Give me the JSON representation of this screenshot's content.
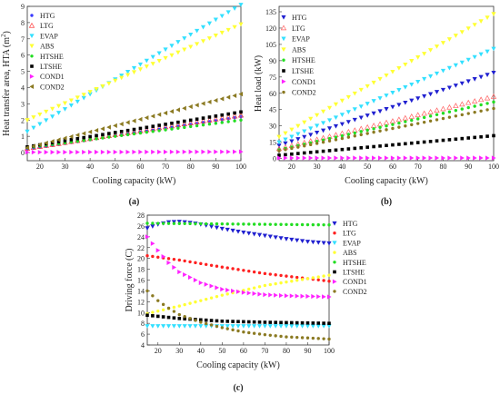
{
  "chart_data": [
    {
      "id": "a",
      "type": "scatter",
      "panel_label": "(a)",
      "xlabel": "Cooling capacity (kW)",
      "ylabel": "Heat transfer area, HTA (m",
      "ylabel_sup": "2",
      "ylabel_tail": ")",
      "xlim": [
        15,
        100
      ],
      "ylim": [
        -0.5,
        9
      ],
      "xticks": [
        20,
        30,
        40,
        50,
        60,
        70,
        80,
        90,
        100
      ],
      "yticks": [
        0,
        1,
        2,
        3,
        4,
        5,
        6,
        7,
        8,
        9
      ],
      "legend_position": "top-left",
      "series": [
        {
          "name": "HTG",
          "color": "#3a3aff",
          "marker": "dot",
          "y_start": 0.2,
          "y_end": 2.2
        },
        {
          "name": "LTG",
          "color": "#ff4040",
          "marker": "triangle-open",
          "y_start": 0.25,
          "y_end": 2.3
        },
        {
          "name": "EVAP",
          "color": "#33e0ff",
          "marker": "triangle-down",
          "y_start": 1.3,
          "y_end": 9.1
        },
        {
          "name": "ABS",
          "color": "#ffff33",
          "marker": "triangle-down",
          "y_start": 2.0,
          "y_end": 7.9
        },
        {
          "name": "HTSHE",
          "color": "#22dd22",
          "marker": "dot",
          "y_start": 0.3,
          "y_end": 2.0
        },
        {
          "name": "LTSHE",
          "color": "#000000",
          "marker": "square",
          "y_start": 0.35,
          "y_end": 2.5
        },
        {
          "name": "COND1",
          "color": "#ff22ff",
          "marker": "triangle-right",
          "y_start": 0.02,
          "y_end": 0.05
        },
        {
          "name": "COND2",
          "color": "#8b7a22",
          "marker": "triangle-left",
          "y_start": 0.3,
          "y_end": 3.6
        }
      ]
    },
    {
      "id": "b",
      "type": "scatter",
      "panel_label": "(b)",
      "xlabel": "Cooling capacity (kW)",
      "ylabel": "Heat load (kW)",
      "xlim": [
        15,
        100
      ],
      "ylim": [
        -2,
        140
      ],
      "xticks": [
        20,
        30,
        40,
        50,
        60,
        70,
        80,
        90,
        100
      ],
      "yticks": [
        0,
        15,
        30,
        45,
        60,
        75,
        90,
        105,
        120,
        135
      ],
      "legend_position": "top-left",
      "series": [
        {
          "name": "HTG",
          "color": "#2020d0",
          "marker": "triangle-down",
          "y_start": 12,
          "y_end": 79
        },
        {
          "name": "LTG",
          "color": "#ff6060",
          "marker": "triangle-open",
          "y_start": 9,
          "y_end": 57
        },
        {
          "name": "EVAP",
          "color": "#33e0ff",
          "marker": "triangle-down",
          "y_start": 15,
          "y_end": 101
        },
        {
          "name": "ABS",
          "color": "#ffff33",
          "marker": "triangle-down",
          "y_start": 20,
          "y_end": 133
        },
        {
          "name": "HTSHE",
          "color": "#22dd22",
          "marker": "dot",
          "y_start": 8,
          "y_end": 52
        },
        {
          "name": "LTSHE",
          "color": "#000000",
          "marker": "square",
          "y_start": 3,
          "y_end": 21
        },
        {
          "name": "COND1",
          "color": "#ff22ff",
          "marker": "triangle-right",
          "y_start": 0.5,
          "y_end": 0.5
        },
        {
          "name": "COND2",
          "color": "#8b7a22",
          "marker": "dot",
          "y_start": 7,
          "y_end": 46
        }
      ]
    },
    {
      "id": "c",
      "type": "scatter",
      "panel_label": "(c)",
      "xlabel": "Cooling capacity (kW)",
      "ylabel": "Driving force (C)",
      "xlim": [
        15,
        100
      ],
      "ylim": [
        4,
        28
      ],
      "xticks": [
        20,
        30,
        40,
        50,
        60,
        70,
        80,
        90,
        100
      ],
      "yticks": [
        4,
        6,
        8,
        10,
        12,
        14,
        16,
        18,
        20,
        22,
        24,
        26,
        28
      ],
      "legend_position": "right",
      "series": [
        {
          "name": "HTG",
          "color": "#2020d0",
          "marker": "triangle-down",
          "points": [
            [
              15,
              25.6
            ],
            [
              20,
              26.3
            ],
            [
              25,
              26.7
            ],
            [
              30,
              26.8
            ],
            [
              35,
              26.6
            ],
            [
              40,
              26.3
            ],
            [
              50,
              25.5
            ],
            [
              60,
              24.8
            ],
            [
              70,
              24.2
            ],
            [
              80,
              23.6
            ],
            [
              90,
              23.1
            ],
            [
              100,
              22.8
            ]
          ]
        },
        {
          "name": "LTG",
          "color": "#ff2020",
          "marker": "dot",
          "points": [
            [
              15,
              20.5
            ],
            [
              30,
              19.7
            ],
            [
              50,
              18.4
            ],
            [
              70,
              17.2
            ],
            [
              100,
              15.8
            ]
          ]
        },
        {
          "name": "EVAP",
          "color": "#33e0ff",
          "marker": "triangle-down",
          "points": [
            [
              15,
              7.5
            ],
            [
              100,
              7.5
            ]
          ]
        },
        {
          "name": "ABS",
          "color": "#ffff33",
          "marker": "dot",
          "points": [
            [
              15,
              9.8
            ],
            [
              30,
              11.2
            ],
            [
              50,
              13.2
            ],
            [
              70,
              15.0
            ],
            [
              100,
              16.9
            ]
          ]
        },
        {
          "name": "HTSHE",
          "color": "#22dd22",
          "marker": "dot",
          "points": [
            [
              15,
              26.5
            ],
            [
              100,
              26.2
            ]
          ]
        },
        {
          "name": "LTSHE",
          "color": "#000000",
          "marker": "square",
          "points": [
            [
              15,
              9.5
            ],
            [
              30,
              8.9
            ],
            [
              50,
              8.4
            ],
            [
              70,
              8.2
            ],
            [
              100,
              8.0
            ]
          ]
        },
        {
          "name": "COND1",
          "color": "#ff22ff",
          "marker": "triangle-right",
          "points": [
            [
              15,
              24.0
            ],
            [
              20,
              21.5
            ],
            [
              25,
              19.2
            ],
            [
              30,
              17.5
            ],
            [
              40,
              15.5
            ],
            [
              50,
              14.3
            ],
            [
              60,
              13.7
            ],
            [
              70,
              13.3
            ],
            [
              80,
              13.1
            ],
            [
              90,
              13.0
            ],
            [
              100,
              12.9
            ]
          ]
        },
        {
          "name": "COND2",
          "color": "#8b7a22",
          "marker": "dot",
          "points": [
            [
              15,
              14.0
            ],
            [
              20,
              12.2
            ],
            [
              25,
              10.8
            ],
            [
              30,
              9.6
            ],
            [
              40,
              8.2
            ],
            [
              50,
              7.2
            ],
            [
              60,
              6.4
            ],
            [
              70,
              5.9
            ],
            [
              80,
              5.5
            ],
            [
              90,
              5.3
            ],
            [
              100,
              5.1
            ]
          ]
        }
      ]
    }
  ]
}
